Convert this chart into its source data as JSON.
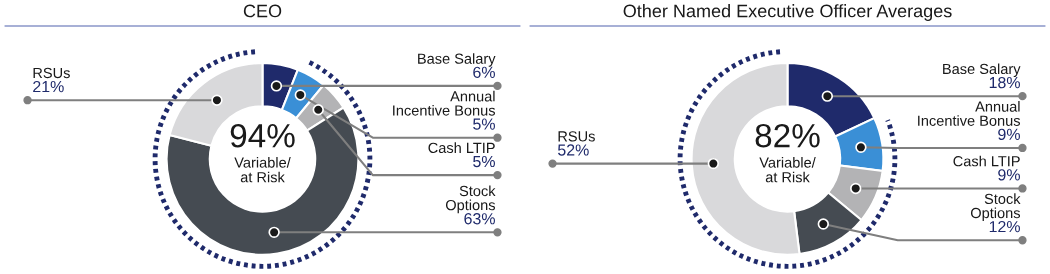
{
  "chart_data": [
    {
      "type": "donut",
      "title": "CEO",
      "categories": [
        "Base Salary",
        "Annual\nIncentive Bonus",
        "Cash LTIP",
        "Stock\nOptions",
        "RSUs"
      ],
      "values": [
        6,
        5,
        5,
        63,
        21
      ],
      "colors": [
        "#1f2a6b",
        "#3a8fd6",
        "#b3b3b5",
        "#454b52",
        "#d9d9db"
      ],
      "value_labels": [
        "6%",
        "5%",
        "5%",
        "63%",
        "21%"
      ],
      "annotations": [
        "94%",
        "Variable/\nat Risk"
      ]
    },
    {
      "type": "donut",
      "title": "Other Named Executive Officer Averages",
      "categories": [
        "Base Salary",
        "Annual\nIncentive Bonus",
        "Cash LTIP",
        "Stock\nOptions",
        "RSUs"
      ],
      "values": [
        18,
        9,
        9,
        12,
        52
      ],
      "colors": [
        "#1f2a6b",
        "#3a8fd6",
        "#b3b3b5",
        "#454b52",
        "#d9d9db"
      ],
      "value_labels": [
        "18%",
        "9%",
        "9%",
        "12%",
        "52%"
      ],
      "annotations": [
        "82%",
        "Variable/\nat Risk"
      ]
    }
  ]
}
